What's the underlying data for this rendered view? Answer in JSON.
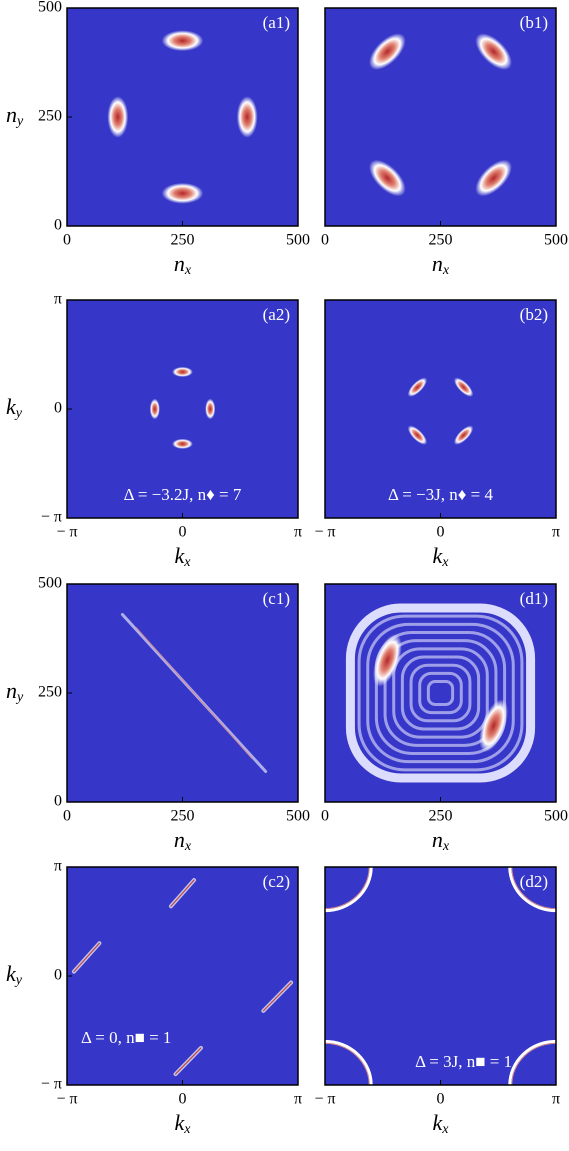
{
  "chart_data": [
    {
      "type": "heatmap",
      "panel_label": "(a1)",
      "xlim": [
        0,
        500
      ],
      "ylim": [
        0,
        500
      ],
      "xticks": [
        0,
        250,
        500
      ],
      "yticks": [
        0,
        250,
        500
      ],
      "xlabel": {
        "symbol": "n",
        "subscript": "x"
      },
      "ylabel": {
        "symbol": "n",
        "subscript": "y"
      }
    },
    {
      "type": "heatmap",
      "panel_label": "(b1)",
      "xlim": [
        0,
        500
      ],
      "xticks": [
        0,
        250,
        500
      ],
      "xlabel": {
        "symbol": "n",
        "subscript": "x"
      }
    },
    {
      "type": "heatmap",
      "panel_label": "(a2)",
      "xlim": [
        -3.1416,
        3.1416
      ],
      "ylim": [
        -3.1416,
        3.1416
      ],
      "xticks": [
        {
          "value": -3.1416,
          "label": "− π"
        },
        0,
        {
          "value": 3.1416,
          "label": "π"
        }
      ],
      "yticks": [
        {
          "value": -3.1416,
          "label": "− π"
        },
        0,
        {
          "value": 3.1416,
          "label": "π"
        }
      ],
      "xlabel": {
        "symbol": "k",
        "subscript": "x"
      },
      "ylabel": {
        "symbol": "k",
        "subscript": "y"
      },
      "annotation": "Δ = −3.2J, n♦ = 7"
    },
    {
      "type": "heatmap",
      "panel_label": "(b2)",
      "xlim": [
        -3.1416,
        3.1416
      ],
      "xticks": [
        {
          "value": -3.1416,
          "label": "− π"
        },
        0,
        {
          "value": 3.1416,
          "label": "π"
        }
      ],
      "xlabel": {
        "symbol": "k",
        "subscript": "x"
      },
      "annotation": "Δ = −3J, n♦ = 4"
    },
    {
      "type": "heatmap",
      "panel_label": "(c1)",
      "xlim": [
        0,
        500
      ],
      "ylim": [
        0,
        500
      ],
      "xticks": [
        0,
        250,
        500
      ],
      "yticks": [
        0,
        250,
        500
      ],
      "xlabel": {
        "symbol": "n",
        "subscript": "x"
      },
      "ylabel": {
        "symbol": "n",
        "subscript": "y"
      }
    },
    {
      "type": "heatmap",
      "panel_label": "(d1)",
      "xlim": [
        0,
        500
      ],
      "xticks": [
        0,
        250,
        500
      ],
      "xlabel": {
        "symbol": "n",
        "subscript": "x"
      }
    },
    {
      "type": "heatmap",
      "panel_label": "(c2)",
      "xlim": [
        -3.1416,
        3.1416
      ],
      "ylim": [
        -3.1416,
        3.1416
      ],
      "xticks": [
        {
          "value": -3.1416,
          "label": "− π"
        },
        0,
        {
          "value": 3.1416,
          "label": "π"
        }
      ],
      "yticks": [
        {
          "value": -3.1416,
          "label": "− π"
        },
        0,
        {
          "value": 3.1416,
          "label": "π"
        }
      ],
      "xlabel": {
        "symbol": "k",
        "subscript": "x"
      },
      "ylabel": {
        "symbol": "k",
        "subscript": "y"
      },
      "annotation": "Δ = 0, n■ = 1"
    },
    {
      "type": "heatmap",
      "panel_label": "(d2)",
      "xlim": [
        -3.1416,
        3.1416
      ],
      "xticks": [
        {
          "value": -3.1416,
          "label": "− π"
        },
        0,
        {
          "value": 3.1416,
          "label": "π"
        }
      ],
      "xlabel": {
        "symbol": "k",
        "subscript": "x"
      },
      "annotation": "Δ = 3J, n■ = 1"
    }
  ]
}
